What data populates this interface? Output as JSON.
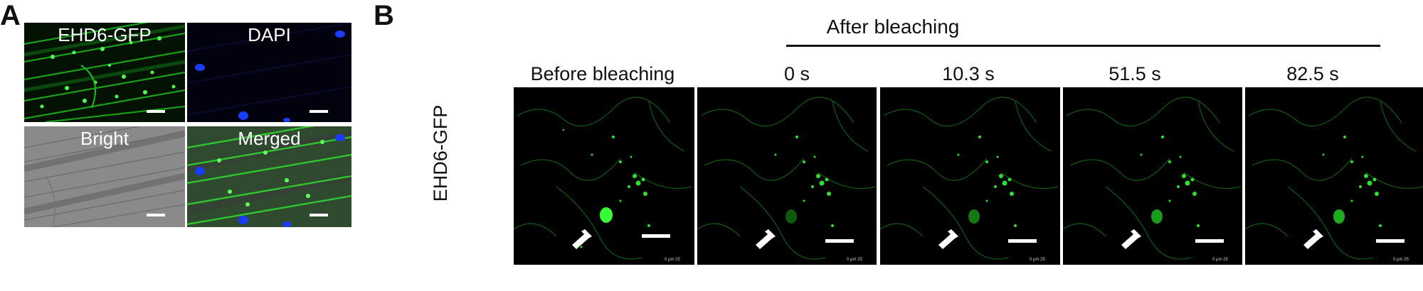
{
  "panel_a": {
    "letter": "A",
    "images": [
      {
        "title": "EHD6-GFP",
        "channel": "green"
      },
      {
        "title": "DAPI",
        "channel": "blue"
      },
      {
        "title": "Bright",
        "channel": "gray"
      },
      {
        "title": "Merged",
        "channel": "merged"
      }
    ]
  },
  "panel_b": {
    "letter": "B",
    "group_label": "After bleaching",
    "row_label": "EHD6-GFP",
    "frames": [
      {
        "label": "Before bleaching",
        "bleached": false
      },
      {
        "label": "0 s",
        "bleached": true
      },
      {
        "label": "10.3 s",
        "bleached": true
      },
      {
        "label": "51.5 s",
        "bleached": true
      },
      {
        "label": "82.5 s",
        "bleached": true
      }
    ],
    "scale_text": "0    μm    25"
  },
  "colors": {
    "gfp_green": "#22e022",
    "dapi_blue": "#1a3cff",
    "background_black": "#000000",
    "bright_gray": "#8a8a8a"
  }
}
